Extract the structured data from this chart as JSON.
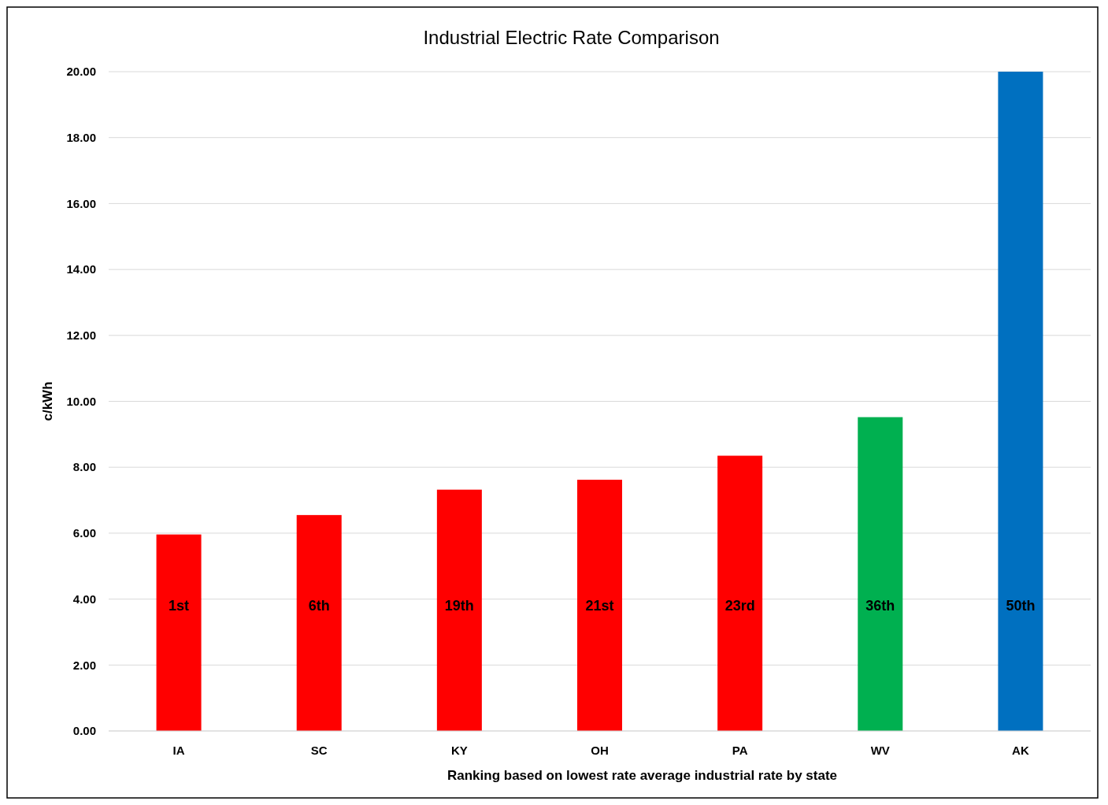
{
  "chart_data": {
    "type": "bar",
    "title": "Industrial Electric Rate Comparison",
    "xlabel": "Ranking based on lowest rate average industrial rate by state",
    "ylabel": "c/kWh",
    "categories": [
      "IA",
      "SC",
      "KY",
      "OH",
      "PA",
      "WV",
      "AK"
    ],
    "values": [
      5.96,
      6.55,
      7.32,
      7.62,
      8.35,
      9.52,
      20.0
    ],
    "colors": [
      "#ff0000",
      "#ff0000",
      "#ff0000",
      "#ff0000",
      "#ff0000",
      "#00b050",
      "#0070c0"
    ],
    "ylim": [
      0,
      20
    ],
    "yticks": [
      {
        "value": 0,
        "label": "0.00"
      },
      {
        "value": 2,
        "label": "2.00"
      },
      {
        "value": 4,
        "label": "4.00"
      },
      {
        "value": 6,
        "label": "6.00"
      },
      {
        "value": 8,
        "label": "8.00"
      },
      {
        "value": 10,
        "label": "10.00"
      },
      {
        "value": 12,
        "label": "12.00"
      },
      {
        "value": 14,
        "label": "14.00"
      },
      {
        "value": 16,
        "label": "16.00"
      },
      {
        "value": 18,
        "label": "18.00"
      },
      {
        "value": 20,
        "label": "20.00"
      }
    ],
    "grid": "y",
    "annotations": [
      "1st",
      "6th",
      "19th",
      "21st",
      "23rd",
      "36th",
      "50th"
    ]
  }
}
